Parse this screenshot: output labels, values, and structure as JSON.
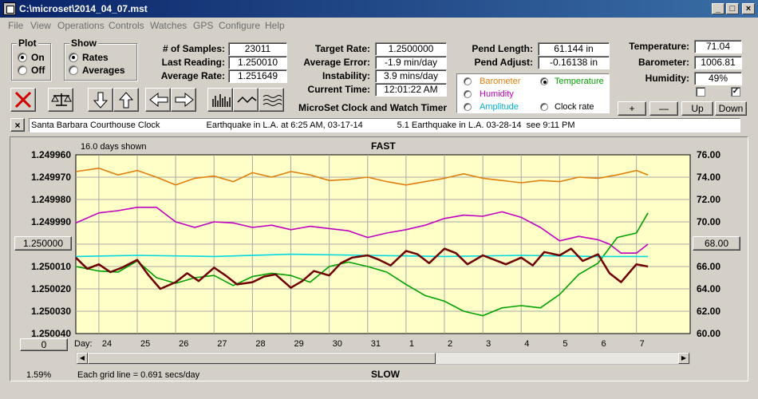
{
  "window": {
    "title": "C:\\microset\\2014_04_07.mst",
    "controls": [
      "_",
      "□",
      "×"
    ]
  },
  "menu": [
    "File",
    "View",
    "Operations",
    "Controls",
    "Watches",
    "GPS",
    "Configure",
    "Help"
  ],
  "plot_group": {
    "title": "Plot",
    "options": [
      "On",
      "Off"
    ],
    "selected": "On"
  },
  "show_group": {
    "title": "Show",
    "options": [
      "Rates",
      "Averages"
    ],
    "selected": "Rates"
  },
  "stats": {
    "samples": {
      "label": "# of Samples:",
      "value": "23011"
    },
    "last_reading": {
      "label": "Last Reading:",
      "value": "1.250010"
    },
    "average_rate": {
      "label": "Average Rate:",
      "value": "1.251649"
    },
    "target_rate": {
      "label": "Target Rate:",
      "value": "1.2500000"
    },
    "average_error": {
      "label": "Average Error:",
      "value": "-1.9 min/day"
    },
    "instability": {
      "label": "Instability:",
      "value": "3.9 mins/day"
    },
    "current_time": {
      "label": "Current Time:",
      "value": "12:01:22 AM"
    },
    "pend_length": {
      "label": "Pend Length:",
      "value": "61.144 in"
    },
    "pend_adjust": {
      "label": "Pend Adjust:",
      "value": "-0.16138 in"
    },
    "temperature": {
      "label": "Temperature:",
      "value": "71.04"
    },
    "barometer": {
      "label": "Barometer:",
      "value": "1006.81"
    },
    "humidity": {
      "label": "Humidity:",
      "value": "49%"
    }
  },
  "app_caption": "MicroSet Clock and Watch Timer",
  "sensors": {
    "options": [
      {
        "label": "Barometer",
        "color": "#e07f0e",
        "checked": false
      },
      {
        "label": "Temperature",
        "color": "#00a000",
        "checked": true
      },
      {
        "label": "Humidity",
        "color": "#c000c0",
        "checked": false
      },
      {
        "label": "Amplitude",
        "color": "#00b0d0",
        "checked": false
      },
      {
        "label": "Clock rate",
        "color": "#000000",
        "checked": false
      }
    ]
  },
  "scale_buttons": [
    "+",
    "—",
    "Up",
    "Down"
  ],
  "checkboxes": [
    false,
    true
  ],
  "toolbar_icons": [
    "close-icon",
    "balance-scale-icon",
    "arrow-down-icon",
    "arrow-up-icon",
    "arrow-left-icon",
    "arrow-right-icon",
    "bar-histogram-icon",
    "line-wave-icon",
    "multi-wave-icon"
  ],
  "notes": {
    "close": "×",
    "text": "Santa Barbara Courthouse Clock                   Earthquake in L.A. at 6:25 AM, 03-17-14              5.1 Earthquake in L.A. 03-28-14  see 9:11 PM"
  },
  "chart_data": {
    "type": "line",
    "top_label": "FAST",
    "bottom_label": "SLOW",
    "days_shown": "16.0 days shown",
    "grid_note": "Each grid line = 0.691 secs/day",
    "percent": "1.59%",
    "left_button": "1.250000",
    "left_bottom_button": "0",
    "right_button": "68.00",
    "x_label": "Day:",
    "x_ticks": [
      "24",
      "25",
      "26",
      "27",
      "28",
      "29",
      "30",
      "31",
      "1",
      "2",
      "3",
      "4",
      "5",
      "6",
      "7"
    ],
    "y_left_ticks": [
      "1.249960",
      "1.249970",
      "1.249980",
      "1.249990",
      "1.250000",
      "1.250010",
      "1.250020",
      "1.250030",
      "1.250040"
    ],
    "y_right_ticks": [
      "76.00",
      "74.00",
      "72.00",
      "70.00",
      "68.00",
      "66.00",
      "64.00",
      "62.00",
      "60.00"
    ],
    "ylim_left": [
      1.24996,
      1.25004
    ],
    "ylim_right": [
      60,
      76
    ],
    "x_range_days": [
      23.4,
      39.4
    ],
    "grid": true,
    "background": "#ffffc8",
    "series": [
      {
        "name": "Barometer",
        "color": "#e07f0e",
        "x": [
          23.4,
          24.0,
          24.5,
          25.0,
          25.5,
          26.0,
          26.5,
          27.0,
          27.5,
          28.0,
          28.5,
          29.0,
          29.5,
          30.0,
          30.5,
          31.0,
          31.5,
          32.0,
          32.5,
          33.0,
          33.5,
          34.0,
          34.5,
          35.0,
          35.5,
          36.0,
          36.5,
          37.0,
          37.5,
          38.0,
          38.3
        ],
        "y": [
          74.5,
          74.8,
          74.2,
          74.6,
          74.0,
          73.3,
          73.9,
          74.1,
          73.6,
          74.4,
          74.0,
          74.5,
          74.2,
          73.7,
          73.8,
          74.0,
          73.6,
          73.3,
          73.6,
          73.9,
          74.3,
          73.9,
          73.7,
          73.5,
          73.7,
          73.6,
          74.0,
          73.9,
          74.2,
          74.6,
          74.2
        ]
      },
      {
        "name": "Humidity",
        "color": "#c000c0",
        "x": [
          23.4,
          24.0,
          24.5,
          25.0,
          25.5,
          26.0,
          26.5,
          27.0,
          27.5,
          28.0,
          28.5,
          29.0,
          29.5,
          30.0,
          30.5,
          31.0,
          31.5,
          32.0,
          32.5,
          33.0,
          33.5,
          34.0,
          34.5,
          35.0,
          35.5,
          36.0,
          36.5,
          37.0,
          37.3,
          37.6,
          38.0,
          38.3
        ],
        "y": [
          69.9,
          70.8,
          71.0,
          71.3,
          71.3,
          70.0,
          69.5,
          70.0,
          69.9,
          69.5,
          69.7,
          69.3,
          69.6,
          69.4,
          69.2,
          68.6,
          69.0,
          69.3,
          69.7,
          70.3,
          70.6,
          70.5,
          70.9,
          70.4,
          69.5,
          68.3,
          68.7,
          68.4,
          68.0,
          67.2,
          67.2,
          68.0
        ]
      },
      {
        "name": "Temperature",
        "color": "#00a000",
        "x": [
          23.4,
          24.0,
          24.5,
          25.0,
          25.5,
          26.0,
          26.5,
          27.0,
          27.5,
          28.0,
          28.5,
          29.0,
          29.5,
          30.0,
          30.5,
          31.0,
          31.5,
          32.0,
          32.5,
          33.0,
          33.5,
          34.0,
          34.5,
          35.0,
          35.5,
          36.0,
          36.5,
          37.0,
          37.5,
          38.0,
          38.3
        ],
        "y": [
          66.0,
          65.6,
          65.5,
          66.5,
          65.0,
          64.5,
          65.0,
          65.2,
          64.3,
          65.1,
          65.4,
          65.2,
          64.6,
          66.0,
          66.4,
          66.0,
          65.5,
          64.4,
          63.4,
          62.9,
          62.0,
          61.6,
          62.3,
          62.5,
          62.3,
          63.5,
          65.3,
          66.3,
          68.6,
          69.0,
          70.8
        ]
      },
      {
        "name": "Amplitude",
        "color": "#00d8e0",
        "x": [
          23.4,
          25.0,
          27.0,
          29.0,
          31.0,
          33.0,
          35.0,
          37.0,
          38.3
        ],
        "y": [
          66.9,
          67.0,
          66.9,
          67.1,
          67.0,
          66.9,
          67.0,
          66.9,
          66.9
        ]
      },
      {
        "name": "Clock rate",
        "color": "#700000",
        "x": [
          23.4,
          23.7,
          24.0,
          24.3,
          24.6,
          25.0,
          25.3,
          25.6,
          26.0,
          26.3,
          26.6,
          27.0,
          27.3,
          27.6,
          28.0,
          28.3,
          28.6,
          29.0,
          29.3,
          29.6,
          30.0,
          30.3,
          30.6,
          31.0,
          31.3,
          31.6,
          32.0,
          32.3,
          32.6,
          33.0,
          33.3,
          33.6,
          34.0,
          34.3,
          34.6,
          35.0,
          35.3,
          35.6,
          36.0,
          36.3,
          36.6,
          37.0,
          37.3,
          37.6,
          38.0,
          38.3
        ],
        "y": [
          66.8,
          65.8,
          66.2,
          65.5,
          65.9,
          66.6,
          65.2,
          64.0,
          64.6,
          65.4,
          64.7,
          65.9,
          65.2,
          64.4,
          64.6,
          65.1,
          65.3,
          64.1,
          64.7,
          65.6,
          65.2,
          66.3,
          66.8,
          67.0,
          66.6,
          66.1,
          67.4,
          67.1,
          66.3,
          67.6,
          67.2,
          66.2,
          67.0,
          66.6,
          66.2,
          66.8,
          66.1,
          67.3,
          67.0,
          67.6,
          66.5,
          67.1,
          65.4,
          64.6,
          66.2,
          66.0
        ]
      }
    ]
  }
}
